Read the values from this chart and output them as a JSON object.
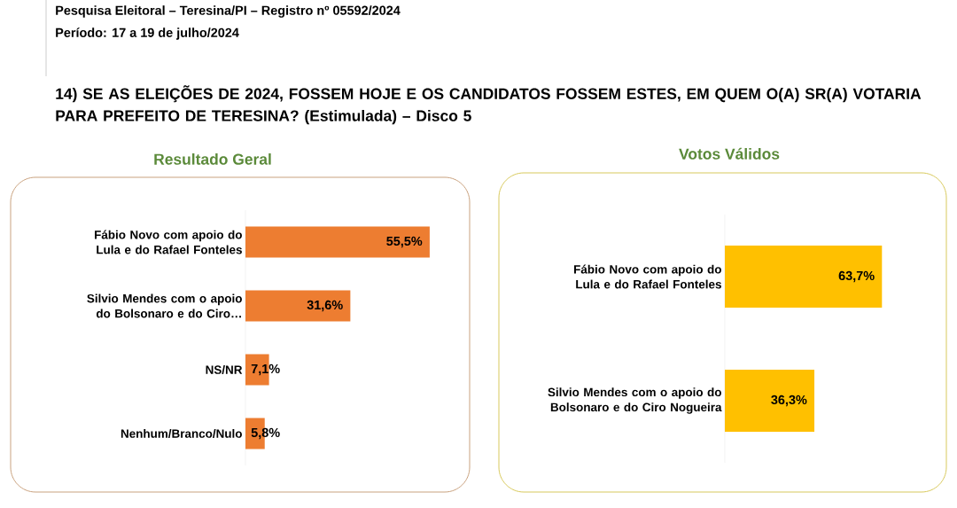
{
  "chart_data": [
    {
      "type": "bar",
      "orientation": "horizontal",
      "title": "Resultado Geral",
      "annotations": [
        "Pesquisa Eleitoral – Teresina/PI  – Registro nº 05592/2024",
        "Período: 17 a 19 de julho/2024",
        "14) SE AS ELEIÇÕES DE 2024, FOSSEM HOJE E OS CANDIDATOS FOSSEM ESTES, EM QUEM O(A) SR(A) VOTARIA PARA PREFEITO DE TERESINA? (Estimulada) – Disco 5"
      ],
      "categories": [
        "Fábio Novo com apoio do Lula e do Rafael Fonteles",
        "Silvio Mendes com o apoio do Bolsonaro e do Ciro…",
        "NS/NR",
        "Nenhum/Branco/Nulo"
      ],
      "values": [
        55.5,
        31.6,
        7.1,
        5.8
      ],
      "color": "#ed7d31",
      "value_labels": [
        "55,5%",
        "31,6%",
        "7,1%",
        "5,8%"
      ]
    },
    {
      "type": "bar",
      "orientation": "horizontal",
      "title": "Votos Válidos",
      "categories": [
        "Fábio Novo com apoio do Lula e do Rafael Fonteles",
        "Silvio Mendes com o apoio do Bolsonaro e do Ciro Nogueira"
      ],
      "values": [
        63.7,
        36.3
      ],
      "color": "#ffc000",
      "value_labels": [
        "63,7%",
        "36,3%"
      ]
    }
  ]
}
